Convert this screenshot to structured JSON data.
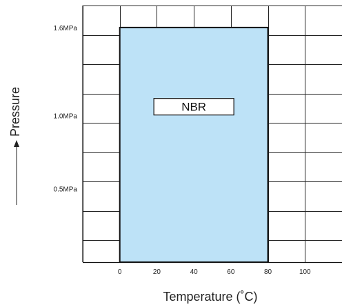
{
  "chart_data": {
    "type": "area",
    "xlabel": "Temperature (˚C)",
    "ylabel": "Pressure",
    "x_ticks": [
      "0",
      "20",
      "40",
      "60",
      "80",
      "100"
    ],
    "x_tick_values": [
      0,
      20,
      40,
      60,
      80,
      100
    ],
    "y_ticks": [
      {
        "label": "0.5MPa",
        "value": 0.5
      },
      {
        "label": "1.0MPa",
        "value": 1.0
      },
      {
        "label": "1.6MPa",
        "value": 1.6
      }
    ],
    "xlim": [
      -20,
      120
    ],
    "ylim": [
      0,
      1.75
    ],
    "grid": true,
    "regions": [
      {
        "name": "NBR",
        "x_range": [
          0,
          80
        ],
        "y_range": [
          0,
          1.6
        ],
        "fill": "#bde2f7"
      }
    ]
  }
}
